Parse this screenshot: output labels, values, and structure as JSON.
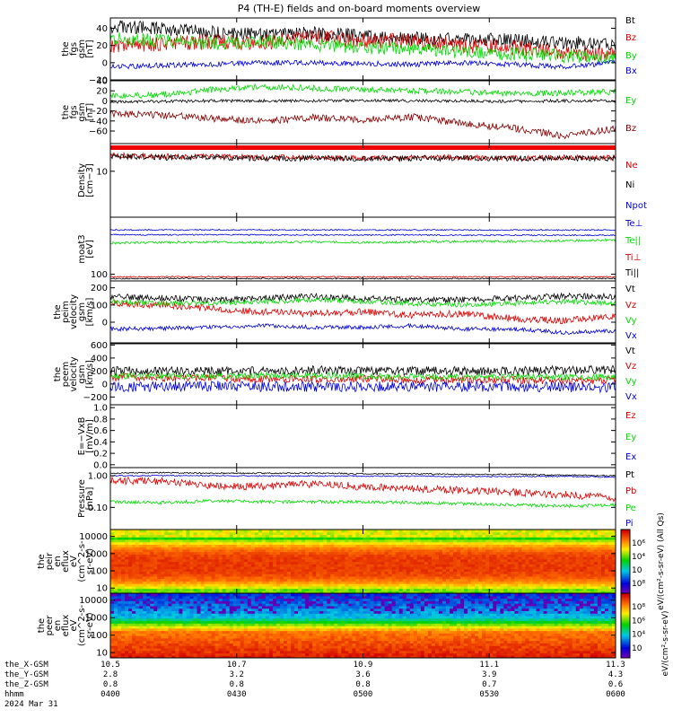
{
  "title": "P4 (TH-E) fields and on-board moments overview",
  "colors": {
    "black": "#000000",
    "red": "#dd0000",
    "green": "#00dd00",
    "blue": "#0000dd",
    "darkred": "#8b0000"
  },
  "chart_data": [
    {
      "type": "line",
      "ylabel": [
        "the",
        "fgs",
        "gsm",
        "[nT]"
      ],
      "ylim": [
        -20,
        52
      ],
      "yticks": [
        "40",
        "20",
        "0",
        "−20"
      ],
      "ytick_values": [
        40,
        20,
        0,
        -20
      ],
      "series": [
        {
          "name": "Bt",
          "color": "#000000",
          "base": [
            42,
            40,
            35,
            33,
            34,
            31,
            28,
            27,
            26,
            24,
            20
          ],
          "noise": 8
        },
        {
          "name": "Bz",
          "color": "#dd0000",
          "base": [
            20,
            22,
            24,
            23,
            30,
            26,
            25,
            20,
            18,
            12,
            10
          ],
          "noise": 9
        },
        {
          "name": "By",
          "color": "#00dd00",
          "base": [
            28,
            26,
            22,
            25,
            21,
            18,
            16,
            12,
            10,
            8,
            5
          ],
          "noise": 8
        },
        {
          "name": "Bx",
          "color": "#0000dd",
          "base": [
            -5,
            -3,
            -2,
            0,
            0,
            -1,
            -2,
            0,
            -2,
            -5,
            0
          ],
          "noise": 3
        }
      ]
    },
    {
      "type": "line",
      "ylabel": [
        "the",
        "fgs",
        "gsm",
        "[nT]"
      ],
      "ylim": [
        -85,
        40
      ],
      "yticks": [
        "40",
        "20",
        "0",
        "−20",
        "−40",
        "−60"
      ],
      "ytick_values": [
        40,
        20,
        0,
        -20,
        -40,
        -60
      ],
      "series": [
        {
          "name": "Ey",
          "color": "#00dd00",
          "base": [
            10,
            12,
            22,
            28,
            25,
            22,
            20,
            18,
            15,
            16,
            18
          ],
          "noise": 6
        },
        {
          "name": "",
          "color": "#000000",
          "base": [
            -2,
            -1,
            0,
            0,
            0,
            1,
            0,
            0,
            -1,
            0,
            0
          ],
          "noise": 3
        },
        {
          "name": "Bz",
          "color": "#8b0000",
          "base": [
            -25,
            -28,
            -35,
            -40,
            -33,
            -38,
            -32,
            -45,
            -55,
            -70,
            -55
          ],
          "noise": 7
        }
      ]
    },
    {
      "type": "line",
      "ylabel": [
        "Density",
        "[cm−3]"
      ],
      "log": true,
      "ylim": [
        1,
        40
      ],
      "yticks": [
        "10"
      ],
      "ytick_values": [
        10
      ],
      "series": [
        {
          "name": "Ne",
          "color": "#dd0000",
          "base": [
            22,
            21,
            21,
            20,
            20,
            19,
            20,
            20,
            19,
            20,
            20
          ],
          "noise": 0.06
        },
        {
          "name": "Ni",
          "color": "#000000",
          "base": [
            21,
            20,
            20,
            19,
            19,
            19,
            19,
            19,
            19,
            19,
            19
          ],
          "noise": 0.06
        }
      ]
    },
    {
      "type": "line",
      "ylabel": [
        "moat3",
        "[eV]"
      ],
      "log": true,
      "ylim": [
        60,
        8000
      ],
      "yticks": [
        "100"
      ],
      "ytick_values": [
        100
      ],
      "series": [
        {
          "name": "Npot",
          "color": "#0000dd",
          "base": [
            3000,
            3000,
            3050,
            3000,
            3000,
            3000,
            3000,
            3000,
            3000,
            3000,
            3000
          ],
          "noise": 0.02
        },
        {
          "name": "Te⊥",
          "color": "#0000dd",
          "base": [
            2100,
            2050,
            2100,
            2050,
            2050,
            2050,
            2050,
            2000,
            2000,
            2000,
            2000
          ],
          "noise": 0.02
        },
        {
          "name": "Te||",
          "color": "#00dd00",
          "base": [
            1100,
            1150,
            1200,
            1150,
            1200,
            1150,
            1200,
            1250,
            1250,
            1300,
            1400
          ],
          "noise": 0.04
        },
        {
          "name": "Ti⊥",
          "color": "#dd0000",
          "base": [
            82,
            82,
            83,
            82,
            82,
            82,
            82,
            82,
            82,
            82,
            82
          ],
          "noise": 0.02
        },
        {
          "name": "Ti||",
          "color": "#000000",
          "base": [
            72,
            72,
            73,
            72,
            72,
            72,
            72,
            72,
            72,
            72,
            72
          ],
          "noise": 0.02
        }
      ]
    },
    {
      "type": "line",
      "ylabel": [
        "the",
        "peim",
        "velocity",
        "gsm",
        "[km/s]"
      ],
      "ylim": [
        -120,
        240
      ],
      "yticks": [
        "200",
        "100",
        "0"
      ],
      "ytick_values": [
        200,
        100,
        0
      ],
      "series": [
        {
          "name": "Vt",
          "color": "#000000",
          "base": [
            150,
            140,
            130,
            140,
            150,
            140,
            130,
            130,
            140,
            150,
            150
          ],
          "noise": 18
        },
        {
          "name": "Vz",
          "color": "#dd0000",
          "base": [
            110,
            100,
            80,
            60,
            50,
            60,
            40,
            50,
            20,
            10,
            40
          ],
          "noise": 20
        },
        {
          "name": "Vy",
          "color": "#00dd00",
          "base": [
            120,
            110,
            110,
            120,
            130,
            120,
            110,
            100,
            110,
            120,
            110
          ],
          "noise": 15
        },
        {
          "name": "Vx",
          "color": "#0000dd",
          "base": [
            -40,
            -35,
            -30,
            -20,
            -30,
            -30,
            -20,
            -40,
            -40,
            -60,
            -50
          ],
          "noise": 12
        }
      ]
    },
    {
      "type": "line",
      "ylabel": [
        "the",
        "peem",
        "velocity",
        "gsm",
        "[km/s]"
      ],
      "ylim": [
        -320,
        620
      ],
      "yticks": [
        "600",
        "400",
        "200",
        "0",
        "−200"
      ],
      "ytick_values": [
        600,
        400,
        200,
        0,
        -200
      ],
      "series": [
        {
          "name": "Vt",
          "color": "#000000",
          "base": [
            200,
            200,
            190,
            200,
            210,
            200,
            200,
            200,
            200,
            210,
            220
          ],
          "noise": 70
        },
        {
          "name": "Vz",
          "color": "#dd0000",
          "base": [
            100,
            100,
            90,
            80,
            70,
            80,
            60,
            70,
            60,
            50,
            60
          ],
          "noise": 60
        },
        {
          "name": "Vy",
          "color": "#00dd00",
          "base": [
            130,
            120,
            120,
            130,
            130,
            120,
            120,
            110,
            110,
            110,
            110
          ],
          "noise": 50
        },
        {
          "name": "Vx",
          "color": "#0000dd",
          "base": [
            -40,
            -40,
            -30,
            -40,
            -40,
            -40,
            -40,
            -40,
            -40,
            -50,
            -50
          ],
          "noise": 80
        }
      ]
    },
    {
      "type": "line",
      "ylabel": [
        "E=−VxB",
        "[mV/m]"
      ],
      "ylim": [
        -0.05,
        1.05
      ],
      "yticks": [
        "1.0",
        "0.8",
        "0.6",
        "0.4",
        "0.2",
        "0.0"
      ],
      "ytick_values": [
        1.0,
        0.8,
        0.6,
        0.4,
        0.2,
        0.0
      ],
      "series": [
        {
          "name": "Ez",
          "color": "#dd0000",
          "base": [],
          "noise": 0
        },
        {
          "name": "Ey",
          "color": "#00dd00",
          "base": [],
          "noise": 0
        },
        {
          "name": "Ex",
          "color": "#0000dd",
          "base": [],
          "noise": 0
        }
      ]
    },
    {
      "type": "line",
      "ylabel": [
        "Pressure",
        "[nPa]"
      ],
      "log": true,
      "ylim": [
        0.02,
        1.8
      ],
      "yticks": [
        "1.00",
        "0.10"
      ],
      "ytick_values": [
        1.0,
        0.1
      ],
      "series": [
        {
          "name": "Pt",
          "color": "#000000",
          "base": [
            1.2,
            1.25,
            1.2,
            1.2,
            1.2,
            1.15,
            1.15,
            1.1,
            1.1,
            1.05,
            1.0
          ],
          "noise": 0.02
        },
        {
          "name": "Pb",
          "color": "#dd0000",
          "base": [
            0.7,
            0.65,
            0.5,
            0.45,
            0.55,
            0.45,
            0.4,
            0.35,
            0.3,
            0.25,
            0.2
          ],
          "noise": 0.12
        },
        {
          "name": "Pe",
          "color": "#00dd00",
          "base": [
            0.15,
            0.14,
            0.16,
            0.15,
            0.15,
            0.15,
            0.14,
            0.13,
            0.12,
            0.11,
            0.12
          ],
          "noise": 0.05
        },
        {
          "name": "Pi",
          "color": "#0000dd",
          "base": [
            1.0,
            1.0,
            1.0,
            0.98,
            0.98,
            0.97,
            0.97,
            0.95,
            0.95,
            0.95,
            0.9
          ],
          "noise": 0.02
        }
      ]
    },
    {
      "type": "heatmap",
      "ylabel": [
        "the",
        "peir",
        "en",
        "eflux",
        "eV",
        "(cm^2-s-",
        "sr-eV)"
      ],
      "log": true,
      "ylim": [
        5,
        25000
      ],
      "yticks": [
        "10000",
        "1000",
        "100",
        "10"
      ],
      "ytick_values": [
        10000,
        1000,
        100,
        10
      ],
      "profile": "ion",
      "colorbar": {
        "ticks": [
          "10⁶",
          "10⁴",
          "10⁲",
          "10⁸"
        ],
        "label": "eV/(cm²-s-sr-eV) (All Qs)"
      }
    },
    {
      "type": "heatmap",
      "ylabel": [
        "the",
        "peer",
        "en",
        "eflux",
        "eV",
        "(cm^2-s-",
        "sr-eV)"
      ],
      "log": true,
      "ylim": [
        5,
        25000
      ],
      "yticks": [
        "10000",
        "1000",
        "100",
        "10"
      ],
      "ytick_values": [
        10000,
        1000,
        100,
        10
      ],
      "profile": "electron",
      "colorbar": {
        "ticks": [
          "10⁸",
          "10⁶",
          "10⁴",
          "10⁲"
        ],
        "label": "eV/(cm²-s-sr-eV)"
      }
    }
  ],
  "xaxis": {
    "range": [
      0,
      120
    ],
    "tick_minutes": [
      0,
      30,
      60,
      90,
      120
    ],
    "rows": [
      {
        "label": "the_X-GSM",
        "values": [
          "10.5",
          "10.7",
          "10.9",
          "11.1",
          "11.3"
        ]
      },
      {
        "label": "the_Y-GSM",
        "values": [
          "2.8",
          "3.2",
          "3.6",
          "3.9",
          "4.3"
        ]
      },
      {
        "label": "the_Z-GSM",
        "values": [
          "0.8",
          "0.8",
          "0.8",
          "0.7",
          "0.6"
        ]
      },
      {
        "label": "hhmm",
        "values": [
          "0400",
          "0430",
          "0500",
          "0530",
          "0600"
        ]
      }
    ],
    "date": "2024 Mar 31"
  }
}
